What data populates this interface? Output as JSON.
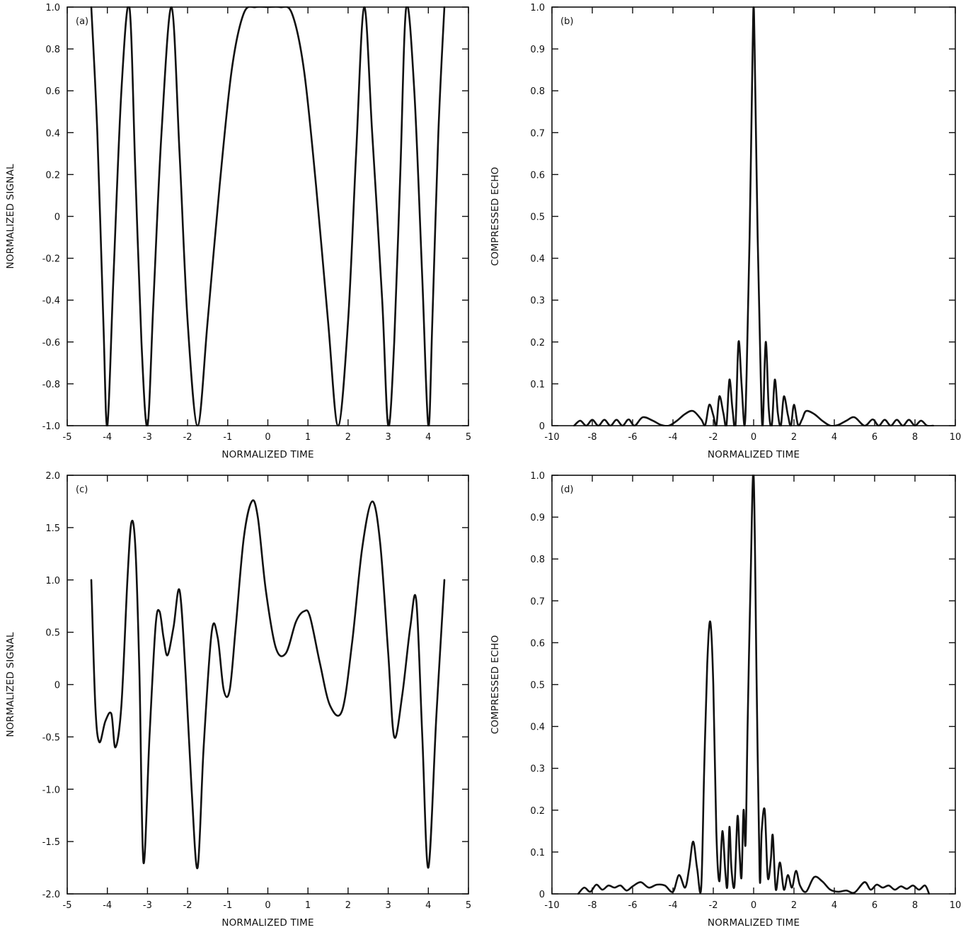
{
  "chart_data": [
    {
      "id": "a",
      "panel_label": "(a)",
      "type": "line",
      "xlabel": "NORMALIZED TIME",
      "ylabel": "NORMALIZED SIGNAL",
      "xlim": [
        -5,
        5
      ],
      "ylim": [
        -1.0,
        1.0
      ],
      "x_ticks": [
        -5,
        -4,
        -3,
        -2,
        -1,
        0,
        1,
        2,
        3,
        4,
        5
      ],
      "x_tick_labels": [
        "-5",
        "-4",
        "-3",
        "-2",
        "-1",
        "0",
        "1",
        "2",
        "3",
        "4",
        "5"
      ],
      "y_ticks": [
        -1.0,
        -0.8,
        -0.6,
        -0.4,
        -0.2,
        0,
        0.2,
        0.4,
        0.6,
        0.8,
        1.0
      ],
      "y_tick_labels": [
        "-1.0",
        "-0.8",
        "-0.6",
        "-0.4",
        "-0.2",
        "0",
        "0.2",
        "0.4",
        "0.6",
        "0.8",
        "1.0"
      ],
      "grid": false,
      "series": [
        {
          "x": [
            -4.4,
            -4.25,
            -4.1,
            -4.0,
            -3.85,
            -3.65,
            -3.45,
            -3.3,
            -3.15,
            -3.0,
            -2.85,
            -2.65,
            -2.4,
            -2.2,
            -2.0,
            -1.75,
            -1.5,
            -1.2,
            -0.9,
            -0.6,
            -0.3,
            0,
            0.3,
            0.6,
            0.9,
            1.2,
            1.5,
            1.75,
            2.0,
            2.2,
            2.4,
            2.6,
            2.85,
            3.0,
            3.15,
            3.3,
            3.45,
            3.65,
            3.85,
            4.0,
            4.1,
            4.25,
            4.4
          ],
          "y": [
            1.0,
            0.4,
            -0.5,
            -1.0,
            -0.3,
            0.6,
            1.0,
            0.2,
            -0.6,
            -1.0,
            -0.4,
            0.4,
            1.0,
            0.3,
            -0.5,
            -1.0,
            -0.5,
            0.15,
            0.7,
            0.97,
            1.0,
            1.0,
            1.0,
            0.97,
            0.7,
            0.15,
            -0.5,
            -1.0,
            -0.5,
            0.3,
            1.0,
            0.4,
            -0.4,
            -1.0,
            -0.6,
            0.2,
            1.0,
            0.6,
            -0.3,
            -1.0,
            -0.5,
            0.4,
            1.0
          ]
        }
      ]
    },
    {
      "id": "b",
      "panel_label": "(b)",
      "type": "line",
      "xlabel": "NORMALIZED TIME",
      "ylabel": "COMPRESSED ECHO",
      "xlim": [
        -10,
        10
      ],
      "ylim": [
        0,
        1.0
      ],
      "x_ticks": [
        -10,
        -8,
        -6,
        -4,
        -2,
        0,
        2,
        4,
        6,
        8,
        10
      ],
      "x_tick_labels": [
        "-10",
        "-8",
        "-6",
        "-4",
        "-2",
        "0",
        "2",
        "4",
        "6",
        "8",
        "10"
      ],
      "y_ticks": [
        0,
        0.1,
        0.2,
        0.3,
        0.4,
        0.5,
        0.6,
        0.7,
        0.8,
        0.9,
        1.0
      ],
      "y_tick_labels": [
        "0",
        "0.1",
        "0.2",
        "0.3",
        "0.4",
        "0.5",
        "0.6",
        "0.7",
        "0.8",
        "0.9",
        "1.0"
      ],
      "grid": false,
      "series": [
        {
          "x": [
            -8.9,
            -8.6,
            -8.3,
            -8.0,
            -7.7,
            -7.4,
            -7.1,
            -6.8,
            -6.5,
            -6.2,
            -5.9,
            -5.5,
            -5.0,
            -4.6,
            -4.2,
            -3.8,
            -3.4,
            -3.0,
            -2.6,
            -2.4,
            -2.2,
            -2.0,
            -1.85,
            -1.7,
            -1.5,
            -1.35,
            -1.2,
            -1.05,
            -0.9,
            -0.75,
            -0.6,
            -0.45,
            -0.35,
            -0.2,
            -0.05,
            0.0,
            0.05,
            0.2,
            0.35,
            0.45,
            0.6,
            0.75,
            0.9,
            1.05,
            1.2,
            1.35,
            1.5,
            1.7,
            1.85,
            2.0,
            2.2,
            2.4,
            2.6,
            3.0,
            3.4,
            3.8,
            4.2,
            4.6,
            5.0,
            5.5,
            5.9,
            6.2,
            6.5,
            6.8,
            7.1,
            7.4,
            7.7,
            8.0,
            8.3,
            8.6,
            8.9
          ],
          "y": [
            0.0,
            0.012,
            0.0,
            0.014,
            0.0,
            0.014,
            0.0,
            0.014,
            0.0,
            0.015,
            0.0,
            0.02,
            0.012,
            0.002,
            0.0,
            0.012,
            0.028,
            0.035,
            0.015,
            0.002,
            0.05,
            0.025,
            0.0,
            0.07,
            0.03,
            0.0,
            0.11,
            0.04,
            0.0,
            0.2,
            0.1,
            0.0,
            0.12,
            0.45,
            0.9,
            1.0,
            0.9,
            0.45,
            0.12,
            0.0,
            0.2,
            0.04,
            0.0,
            0.11,
            0.03,
            0.0,
            0.07,
            0.025,
            0.0,
            0.05,
            0.002,
            0.015,
            0.035,
            0.028,
            0.012,
            0.0,
            0.002,
            0.012,
            0.02,
            0.0,
            0.015,
            0.0,
            0.014,
            0.0,
            0.014,
            0.0,
            0.014,
            0.0,
            0.012,
            0.0,
            0.0
          ]
        }
      ]
    },
    {
      "id": "c",
      "panel_label": "(c)",
      "type": "line",
      "xlabel": "NORMALIZED TIME",
      "ylabel": "NORMALIZED SIGNAL",
      "xlim": [
        -5,
        5
      ],
      "ylim": [
        -2.0,
        2.0
      ],
      "x_ticks": [
        -5,
        -4,
        -3,
        -2,
        -1,
        0,
        1,
        2,
        3,
        4,
        5
      ],
      "x_tick_labels": [
        "-5",
        "-4",
        "-3",
        "-2",
        "-1",
        "0",
        "1",
        "2",
        "3",
        "4",
        "5"
      ],
      "y_ticks": [
        -2.0,
        -1.5,
        -1.0,
        -0.5,
        0,
        0.5,
        1.0,
        1.5,
        2.0
      ],
      "y_tick_labels": [
        "-2.0",
        "-1.5",
        "-1.0",
        "-0.5",
        "0",
        "0.5",
        "1.0",
        "1.5",
        "2.0"
      ],
      "grid": false,
      "series": [
        {
          "x": [
            -4.4,
            -4.3,
            -4.2,
            -4.05,
            -3.9,
            -3.8,
            -3.65,
            -3.5,
            -3.4,
            -3.3,
            -3.2,
            -3.1,
            -2.95,
            -2.8,
            -2.7,
            -2.6,
            -2.5,
            -2.35,
            -2.2,
            -2.05,
            -1.9,
            -1.75,
            -1.6,
            -1.4,
            -1.25,
            -1.1,
            -0.95,
            -0.8,
            -0.6,
            -0.4,
            -0.25,
            -0.05,
            0.2,
            0.45,
            0.7,
            0.9,
            1.05,
            1.3,
            1.55,
            1.85,
            2.1,
            2.35,
            2.6,
            2.8,
            3.0,
            3.15,
            3.35,
            3.55,
            3.7,
            3.85,
            4.0,
            4.2,
            4.4
          ],
          "y": [
            1.0,
            -0.2,
            -0.55,
            -0.35,
            -0.28,
            -0.6,
            -0.2,
            1.0,
            1.55,
            1.3,
            0.1,
            -1.7,
            -0.5,
            0.55,
            0.7,
            0.45,
            0.28,
            0.55,
            0.9,
            0.1,
            -1.0,
            -1.75,
            -0.6,
            0.5,
            0.45,
            -0.05,
            -0.05,
            0.55,
            1.4,
            1.75,
            1.6,
            0.9,
            0.35,
            0.3,
            0.6,
            0.7,
            0.65,
            0.2,
            -0.2,
            -0.25,
            0.4,
            1.3,
            1.75,
            1.35,
            0.3,
            -0.5,
            -0.1,
            0.55,
            0.8,
            -0.5,
            -1.75,
            -0.3,
            1.0
          ]
        }
      ]
    },
    {
      "id": "d",
      "panel_label": "(d)",
      "type": "line",
      "xlabel": "NORMALIZED TIME",
      "ylabel": "COMPRESSED ECHO",
      "xlim": [
        -10,
        10
      ],
      "ylim": [
        0,
        1.0
      ],
      "x_ticks": [
        -10,
        -8,
        -6,
        -4,
        -2,
        0,
        2,
        4,
        6,
        8,
        10
      ],
      "x_tick_labels": [
        "-10",
        "-8",
        "-6",
        "-4",
        "-2",
        "0",
        "2",
        "4",
        "6",
        "8",
        "10"
      ],
      "y_ticks": [
        0,
        0.1,
        0.2,
        0.3,
        0.4,
        0.5,
        0.6,
        0.7,
        0.8,
        0.9,
        1.0
      ],
      "y_tick_labels": [
        "0",
        "0.1",
        "0.2",
        "0.3",
        "0.4",
        "0.5",
        "0.6",
        "0.7",
        "0.8",
        "0.9",
        "1.0"
      ],
      "grid": false,
      "series": [
        {
          "x": [
            -8.7,
            -8.4,
            -8.1,
            -7.8,
            -7.5,
            -7.2,
            -6.9,
            -6.6,
            -6.3,
            -6.0,
            -5.6,
            -5.2,
            -4.8,
            -4.4,
            -4.0,
            -3.7,
            -3.4,
            -3.2,
            -3.0,
            -2.8,
            -2.6,
            -2.45,
            -2.3,
            -2.15,
            -2.0,
            -1.85,
            -1.7,
            -1.55,
            -1.4,
            -1.3,
            -1.2,
            -1.1,
            -0.95,
            -0.8,
            -0.7,
            -0.6,
            -0.5,
            -0.4,
            -0.3,
            -0.15,
            0.0,
            0.15,
            0.3,
            0.4,
            0.55,
            0.7,
            0.85,
            0.95,
            1.1,
            1.3,
            1.5,
            1.7,
            1.9,
            2.1,
            2.3,
            2.6,
            3.0,
            3.4,
            3.8,
            4.2,
            4.6,
            5.0,
            5.5,
            5.8,
            6.1,
            6.4,
            6.7,
            7.0,
            7.3,
            7.6,
            7.9,
            8.2,
            8.5,
            8.7
          ],
          "y": [
            0.0,
            0.015,
            0.005,
            0.022,
            0.01,
            0.02,
            0.015,
            0.02,
            0.008,
            0.018,
            0.028,
            0.015,
            0.022,
            0.02,
            0.005,
            0.045,
            0.015,
            0.06,
            0.125,
            0.06,
            0.015,
            0.3,
            0.55,
            0.65,
            0.5,
            0.15,
            0.03,
            0.15,
            0.05,
            0.02,
            0.16,
            0.06,
            0.02,
            0.185,
            0.1,
            0.04,
            0.2,
            0.12,
            0.4,
            0.75,
            1.0,
            0.5,
            0.04,
            0.15,
            0.2,
            0.04,
            0.08,
            0.14,
            0.01,
            0.075,
            0.01,
            0.045,
            0.015,
            0.055,
            0.02,
            0.005,
            0.04,
            0.03,
            0.01,
            0.005,
            0.008,
            0.003,
            0.028,
            0.01,
            0.022,
            0.015,
            0.02,
            0.01,
            0.018,
            0.012,
            0.02,
            0.01,
            0.02,
            0.0
          ]
        }
      ]
    }
  ]
}
